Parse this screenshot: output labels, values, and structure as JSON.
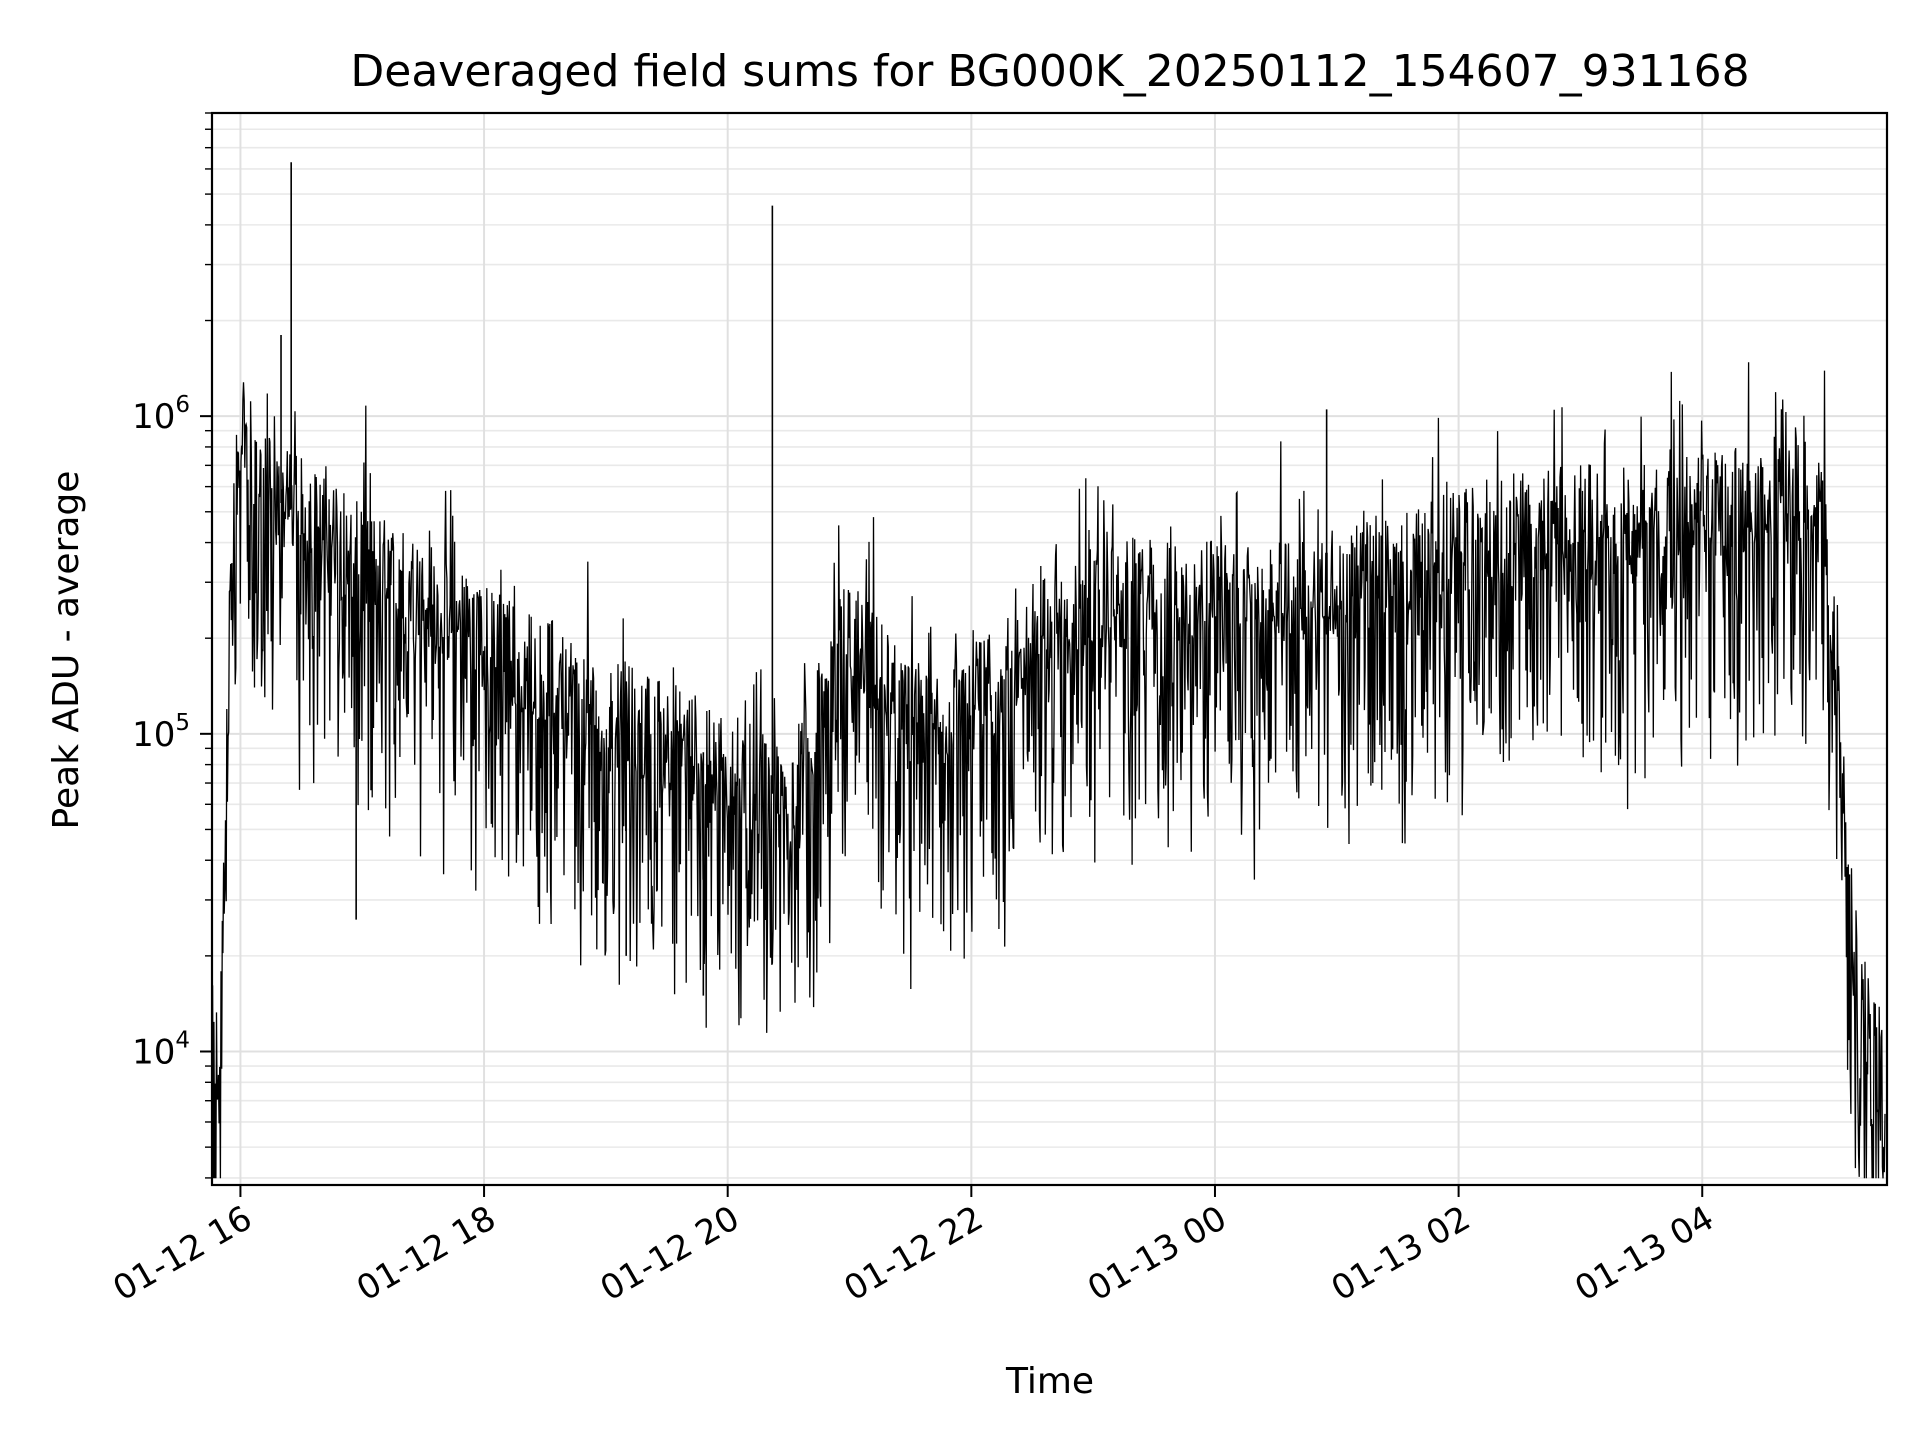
{
  "chart_data": {
    "type": "line",
    "title": "Deaveraged field sums for BG000K_20250112_154607_931168",
    "xlabel": "Time",
    "ylabel": "Peak ADU - average",
    "yscale": "log",
    "ylim": [
      3800,
      9000000
    ],
    "xlim": [
      "2025-01-12 15:46",
      "2025-01-13 05:31"
    ],
    "grid": true,
    "line_color": "#000000",
    "x_ticks": [
      {
        "value": "2025-01-12 16:00",
        "label": "01-12 16"
      },
      {
        "value": "2025-01-12 18:00",
        "label": "01-12 18"
      },
      {
        "value": "2025-01-12 20:00",
        "label": "01-12 20"
      },
      {
        "value": "2025-01-12 22:00",
        "label": "01-12 22"
      },
      {
        "value": "2025-01-13 00:00",
        "label": "01-13 00"
      },
      {
        "value": "2025-01-13 02:00",
        "label": "01-13 02"
      },
      {
        "value": "2025-01-13 04:00",
        "label": "01-13 04"
      }
    ],
    "y_ticks": [
      {
        "value": 10000,
        "base": "10",
        "exp": "4"
      },
      {
        "value": 100000,
        "base": "10",
        "exp": "5"
      },
      {
        "value": 1000000,
        "base": "10",
        "exp": "6"
      }
    ],
    "series": [
      {
        "x": [
          "2025-01-12 15:46",
          "2025-01-12 15:50",
          "2025-01-12 15:55",
          "2025-01-12 16:00",
          "2025-01-12 16:15",
          "2025-01-12 16:30",
          "2025-01-12 17:00",
          "2025-01-12 17:30",
          "2025-01-12 18:00",
          "2025-01-12 18:30",
          "2025-01-12 19:00",
          "2025-01-12 19:30",
          "2025-01-12 20:00",
          "2025-01-12 20:30",
          "2025-01-12 21:00",
          "2025-01-12 21:30",
          "2025-01-12 22:00",
          "2025-01-12 22:30",
          "2025-01-12 23:00",
          "2025-01-12 23:30",
          "2025-01-13 00:00",
          "2025-01-13 00:30",
          "2025-01-13 01:00",
          "2025-01-13 01:30",
          "2025-01-13 02:00",
          "2025-01-13 02:30",
          "2025-01-13 03:00",
          "2025-01-13 03:30",
          "2025-01-13 04:00",
          "2025-01-13 04:30",
          "2025-01-13 05:00",
          "2025-01-13 05:15",
          "2025-01-13 05:20",
          "2025-01-13 05:30"
        ],
        "values": [
          11000,
          9000,
          300000,
          900000,
          550000,
          500000,
          350000,
          280000,
          200000,
          160000,
          120000,
          100000,
          80000,
          60000,
          220000,
          110000,
          130000,
          180000,
          260000,
          280000,
          270000,
          290000,
          300000,
          340000,
          400000,
          450000,
          480000,
          470000,
          520000,
          560000,
          600000,
          18000,
          13000,
          12000
        ],
        "peaks": [
          {
            "x": "2025-01-12 16:25",
            "value": 6300000
          },
          {
            "x": "2025-01-12 16:20",
            "value": 1800000
          },
          {
            "x": "2025-01-12 20:22",
            "value": 4600000
          },
          {
            "x": "2025-01-13 00:55",
            "value": 1050000
          },
          {
            "x": "2025-01-12 19:10",
            "value": 20000
          },
          {
            "x": "2025-01-12 19:48",
            "value": 15000
          },
          {
            "x": "2025-01-12 16:57",
            "value": 26000
          }
        ]
      }
    ]
  }
}
